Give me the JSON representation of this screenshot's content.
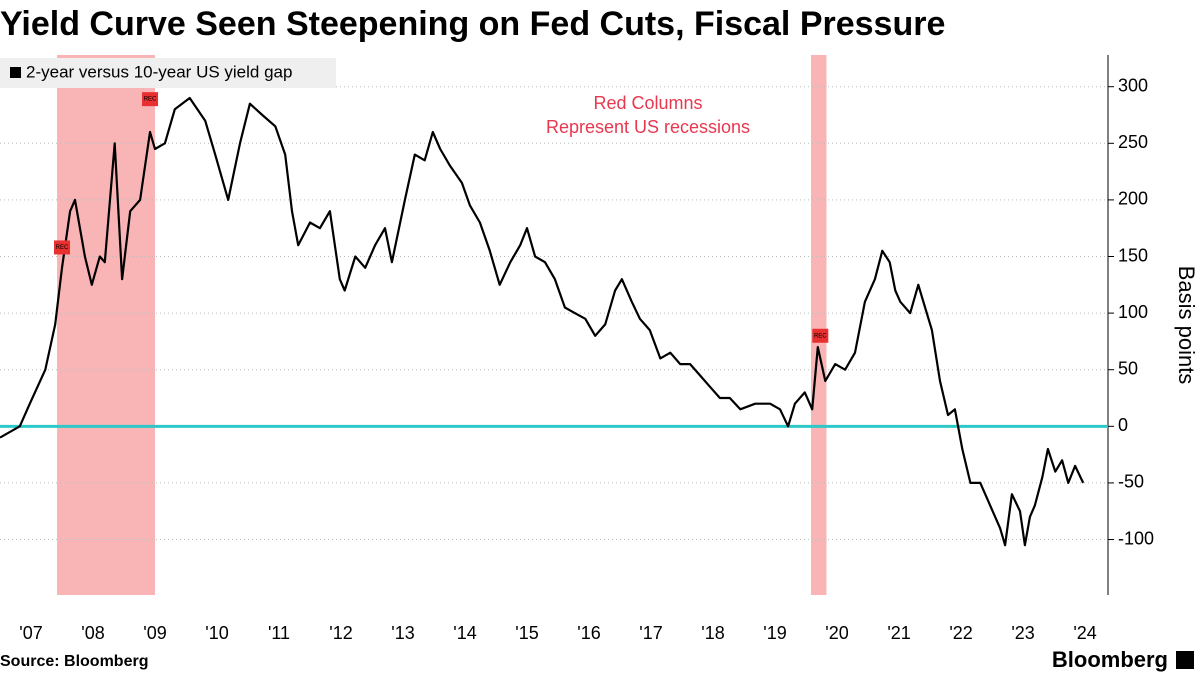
{
  "chart_data": {
    "type": "line",
    "title": "Yield Curve Seen Steepening on Fed Cuts, Fiscal Pressure",
    "y_label": "Basis points",
    "source": "Source: Bloomberg",
    "brand": "Bloomberg",
    "annotation": [
      "Red Columns",
      "Represent US recessions"
    ],
    "legend_position": "top-left",
    "grid": true,
    "reference_line": {
      "value": 0,
      "color": "#2ec8c8"
    },
    "recessions": {
      "color": "#f8a8a8",
      "ranges": [
        [
          2007.92,
          2009.5
        ],
        [
          2020.08,
          2020.33
        ]
      ]
    },
    "events": [
      {
        "x": 2008.0,
        "y": 158,
        "label": "REC"
      },
      {
        "x": 2009.42,
        "y": 289,
        "label": "REC"
      },
      {
        "x": 2020.23,
        "y": 80,
        "label": "REC"
      }
    ],
    "x": [
      2007.0,
      2007.32,
      2007.48,
      2007.73,
      2007.89,
      2008.0,
      2008.13,
      2008.21,
      2008.37,
      2008.48,
      2008.61,
      2008.69,
      2008.85,
      2008.97,
      2009.1,
      2009.26,
      2009.42,
      2009.5,
      2009.66,
      2009.82,
      2010.06,
      2010.31,
      2010.47,
      2010.68,
      2010.87,
      2011.03,
      2011.23,
      2011.44,
      2011.6,
      2011.71,
      2011.81,
      2012.0,
      2012.16,
      2012.32,
      2012.48,
      2012.56,
      2012.73,
      2012.89,
      2013.05,
      2013.21,
      2013.32,
      2013.53,
      2013.69,
      2013.85,
      2013.98,
      2014.1,
      2014.26,
      2014.45,
      2014.58,
      2014.74,
      2014.9,
      2015.06,
      2015.23,
      2015.39,
      2015.5,
      2015.63,
      2015.79,
      2015.95,
      2016.11,
      2016.27,
      2016.44,
      2016.6,
      2016.76,
      2016.92,
      2017.03,
      2017.19,
      2017.32,
      2017.48,
      2017.65,
      2017.81,
      2017.97,
      2018.13,
      2018.29,
      2018.45,
      2018.61,
      2018.77,
      2018.94,
      2019.18,
      2019.42,
      2019.58,
      2019.71,
      2019.82,
      2019.98,
      2020.1,
      2020.19,
      2020.31,
      2020.47,
      2020.63,
      2020.79,
      2020.95,
      2021.11,
      2021.23,
      2021.35,
      2021.44,
      2021.52,
      2021.68,
      2021.81,
      2021.92,
      2022.03,
      2022.16,
      2022.29,
      2022.4,
      2022.52,
      2022.65,
      2022.81,
      2022.97,
      2023.13,
      2023.21,
      2023.32,
      2023.45,
      2023.53,
      2023.61,
      2023.69,
      2023.81,
      2023.9,
      2024.02,
      2024.13,
      2024.23,
      2024.34,
      2024.47
    ],
    "xlim": [
      2007.0,
      2024.87
    ],
    "xticks": [
      {
        "value": 2007.5,
        "label": "'07"
      },
      {
        "value": 2008.5,
        "label": "'08"
      },
      {
        "value": 2009.5,
        "label": "'09"
      },
      {
        "value": 2010.5,
        "label": "'10"
      },
      {
        "value": 2011.5,
        "label": "'11"
      },
      {
        "value": 2012.5,
        "label": "'12"
      },
      {
        "value": 2013.5,
        "label": "'13"
      },
      {
        "value": 2014.5,
        "label": "'14"
      },
      {
        "value": 2015.5,
        "label": "'15"
      },
      {
        "value": 2016.5,
        "label": "'16"
      },
      {
        "value": 2017.5,
        "label": "'17"
      },
      {
        "value": 2018.5,
        "label": "'18"
      },
      {
        "value": 2019.5,
        "label": "'19"
      },
      {
        "value": 2020.5,
        "label": "'20"
      },
      {
        "value": 2021.5,
        "label": "'21"
      },
      {
        "value": 2022.5,
        "label": "'22"
      },
      {
        "value": 2023.5,
        "label": "'23"
      },
      {
        "value": 2024.5,
        "label": "'24"
      }
    ],
    "ylim": [
      -149,
      328
    ],
    "yticks": [
      300,
      250,
      200,
      150,
      100,
      50,
      0,
      -50,
      -100
    ],
    "series": [
      {
        "name": "2-year versus 10-year US yield gap",
        "color": "#000000",
        "values": [
          -10,
          0,
          20,
          50,
          90,
          140,
          190,
          200,
          150,
          125,
          150,
          145,
          250,
          130,
          190,
          200,
          260,
          245,
          250,
          280,
          290,
          270,
          240,
          200,
          250,
          285,
          275,
          265,
          240,
          190,
          160,
          180,
          175,
          190,
          130,
          120,
          150,
          140,
          160,
          175,
          145,
          200,
          240,
          235,
          260,
          245,
          230,
          215,
          195,
          180,
          155,
          125,
          145,
          160,
          175,
          150,
          145,
          130,
          105,
          100,
          95,
          80,
          90,
          120,
          130,
          110,
          95,
          85,
          60,
          65,
          55,
          55,
          45,
          35,
          25,
          25,
          15,
          20,
          20,
          15,
          0,
          20,
          30,
          15,
          70,
          40,
          55,
          50,
          65,
          110,
          130,
          155,
          145,
          120,
          110,
          100,
          125,
          105,
          85,
          40,
          10,
          15,
          -20,
          -50,
          -50,
          -70,
          -90,
          -105,
          -60,
          -75,
          -105,
          -80,
          -70,
          -45,
          -20,
          -40,
          -30,
          -50,
          -35,
          -50
        ]
      }
    ]
  }
}
